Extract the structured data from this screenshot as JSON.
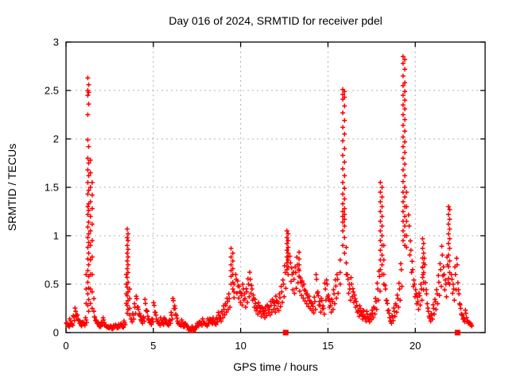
{
  "chart_data": {
    "type": "scatter",
    "title": "Day 016 of 2024, SRMTID for receiver pdel",
    "xlabel": "GPS time / hours",
    "ylabel": "SRMTID / TECUs",
    "xlim": [
      0,
      24
    ],
    "ylim": [
      0,
      3
    ],
    "grid": "dotted gray at every major tick",
    "legend": "none",
    "marker": "plus",
    "marker_color": "#ff0000",
    "axis_color": "#000000",
    "grid_color": "#b0b0b0",
    "x_ticks": [
      {
        "v": 0,
        "label": "0"
      },
      {
        "v": 5,
        "label": "5"
      },
      {
        "v": 10,
        "label": "10"
      },
      {
        "v": 15,
        "label": "15"
      },
      {
        "v": 20,
        "label": "20"
      }
    ],
    "y_ticks": [
      {
        "v": 0,
        "label": "0"
      },
      {
        "v": 0.5,
        "label": "0.5"
      },
      {
        "v": 1,
        "label": "1"
      },
      {
        "v": 1.5,
        "label": "1.5"
      },
      {
        "v": 2,
        "label": "2"
      },
      {
        "v": 2.5,
        "label": "2.5"
      },
      {
        "v": 3,
        "label": "3"
      }
    ],
    "baseline_segments": [
      {
        "x0": 0.05,
        "dx": 0.1,
        "y": [
          0.1,
          0.07,
          0.12,
          0.09,
          0.16,
          0.22,
          0.18,
          0.12,
          0.08,
          0.11,
          0.09,
          0.13
        ]
      },
      {
        "x0": 1.65,
        "dx": 0.1,
        "y": [
          0.16,
          0.12,
          0.09,
          0.07,
          0.1,
          0.13,
          0.08,
          0.06,
          0.05,
          0.07,
          0.04,
          0.06,
          0.08,
          0.05,
          0.07,
          0.09,
          0.06,
          0.1
        ]
      },
      {
        "x0": 3.75,
        "dx": 0.1,
        "y": [
          0.14,
          0.18,
          0.26,
          0.35,
          0.24,
          0.17,
          0.12,
          0.15,
          0.3,
          0.22,
          0.13,
          0.1,
          0.14,
          0.28,
          0.18,
          0.12,
          0.09,
          0.13,
          0.1,
          0.14,
          0.11,
          0.09,
          0.12,
          0.18,
          0.33,
          0.25,
          0.15,
          0.1,
          0.08,
          0.11,
          0.07,
          0.09,
          0.06,
          0.04,
          0.02,
          0.05,
          0.03,
          0.06,
          0.08,
          0.11,
          0.09,
          0.12,
          0.1,
          0.08,
          0.12,
          0.14,
          0.11,
          0.13,
          0.1,
          0.14,
          0.18,
          0.15,
          0.2,
          0.24,
          0.28,
          0.32,
          0.35
        ]
      },
      {
        "x0": 9.75,
        "dx": 0.1,
        "y": [
          0.55,
          0.48,
          0.42,
          0.38,
          0.45,
          0.35,
          0.42,
          0.5,
          0.55,
          0.45,
          0.35,
          0.3,
          0.25,
          0.28,
          0.22,
          0.25,
          0.2,
          0.23,
          0.27,
          0.24,
          0.28,
          0.32,
          0.28,
          0.33,
          0.3,
          0.36,
          0.42,
          0.5,
          0.62
        ]
      },
      {
        "x0": 12.85,
        "dx": 0.1,
        "y": [
          0.72,
          0.6,
          0.55,
          0.62,
          0.7,
          0.58,
          0.52,
          0.48,
          0.44,
          0.4,
          0.36,
          0.33,
          0.3,
          0.27,
          0.32,
          0.55,
          0.38,
          0.28,
          0.33,
          0.25,
          0.45,
          0.5,
          0.35,
          0.28,
          0.32,
          0.4,
          0.48,
          0.55
        ]
      },
      {
        "x0": 16.15,
        "dx": 0.1,
        "y": [
          0.55,
          0.45,
          0.5,
          0.42,
          0.35,
          0.28,
          0.22,
          0.25,
          0.18,
          0.22,
          0.15,
          0.19,
          0.14,
          0.17,
          0.2,
          0.25,
          0.32,
          0.45,
          0.58
        ]
      },
      {
        "x0": 18.3,
        "dx": 0.1,
        "y": [
          0.45,
          0.3,
          0.2,
          0.12,
          0.16,
          0.22,
          0.28,
          0.35,
          0.45,
          0.65
        ]
      },
      {
        "x0": 19.65,
        "dx": 0.1,
        "y": [
          1.1,
          0.85,
          0.65,
          0.5,
          0.4,
          0.32,
          0.38,
          0.45,
          0.6,
          0.7,
          0.4,
          0.22,
          0.15,
          0.18,
          0.25,
          0.32,
          0.4,
          0.52,
          0.65,
          0.8,
          0.6,
          0.5,
          0.7
        ]
      },
      {
        "x0": 22.1,
        "dx": 0.1,
        "y": [
          0.55,
          0.45,
          0.6,
          0.7,
          0.4,
          0.25,
          0.18,
          0.14,
          0.2,
          0.12,
          0.1,
          0.08
        ]
      }
    ],
    "spike_columns": [
      {
        "x": 1.15,
        "y": [
          0.6,
          0.45,
          0.3
        ]
      },
      {
        "x": 1.25,
        "y": [
          2.63,
          2.5,
          2.45,
          2.25,
          1.99,
          1.8,
          1.68,
          1.55,
          1.43,
          1.3,
          1.22,
          1.09,
          0.98,
          0.88,
          0.76,
          0.64,
          0.52,
          0.4,
          0.28
        ]
      },
      {
        "x": 1.3,
        "y": [
          2.56,
          2.48,
          2.36,
          1.92,
          1.75,
          1.62,
          1.47,
          1.33,
          1.26,
          1.14,
          1.02,
          0.93,
          0.82,
          0.7,
          0.58,
          0.46,
          0.34,
          0.22
        ]
      },
      {
        "x": 1.4,
        "y": [
          1.78,
          1.65,
          1.5,
          1.35,
          1.2,
          1.05,
          0.9,
          0.75,
          0.6,
          0.45,
          0.3
        ]
      },
      {
        "x": 1.5,
        "y": [
          1.55,
          1.42,
          1.28,
          1.12,
          0.95,
          0.78,
          0.6,
          0.42,
          0.25
        ]
      },
      {
        "x": 1.6,
        "y": [
          0.35,
          0.22
        ]
      },
      {
        "x": 3.45,
        "y": [
          0.6,
          0.5,
          0.4,
          0.3
        ]
      },
      {
        "x": 3.5,
        "y": [
          1.07,
          0.98,
          0.9,
          0.82,
          0.74,
          0.66,
          0.57,
          0.47,
          0.38,
          0.28,
          0.2
        ]
      },
      {
        "x": 3.55,
        "y": [
          1.02,
          0.95,
          0.86,
          0.78,
          0.7,
          0.62,
          0.52,
          0.42,
          0.33,
          0.24
        ]
      },
      {
        "x": 3.65,
        "y": [
          0.45,
          0.35,
          0.25,
          0.18
        ]
      },
      {
        "x": 9.45,
        "y": [
          0.87,
          0.78,
          0.7,
          0.64,
          0.58,
          0.5
        ]
      },
      {
        "x": 9.55,
        "y": [
          0.82,
          0.74,
          0.66,
          0.6,
          0.52,
          0.45
        ]
      },
      {
        "x": 9.62,
        "y": [
          0.5,
          0.42,
          0.36
        ]
      },
      {
        "x": 12.65,
        "y": [
          1.05,
          0.98,
          0.92,
          0.85,
          0.78,
          0.72,
          0.65
        ]
      },
      {
        "x": 12.72,
        "y": [
          1.02,
          0.95,
          0.88,
          0.82,
          0.75,
          0.68,
          0.6
        ]
      },
      {
        "x": 13.35,
        "y": [
          0.83,
          0.76,
          0.7,
          0.64,
          0.58
        ]
      },
      {
        "x": 15.7,
        "y": [
          0.75,
          0.62,
          0.5
        ]
      },
      {
        "x": 15.85,
        "y": [
          2.51,
          2.46,
          2.41,
          2.27,
          2.12,
          1.98,
          1.83,
          1.69,
          1.55,
          1.43,
          1.33,
          1.25,
          1.2,
          1.14,
          1.05,
          0.9
        ]
      },
      {
        "x": 15.95,
        "y": [
          2.49,
          2.43,
          2.34,
          2.19,
          2.05,
          1.9,
          1.76,
          1.62,
          1.49,
          1.38,
          1.28,
          1.22,
          1.17,
          1.1,
          0.98,
          0.82
        ]
      },
      {
        "x": 16.05,
        "y": [
          0.88,
          0.72,
          0.6
        ]
      },
      {
        "x": 18.0,
        "y": [
          1.55,
          1.45,
          1.35,
          1.25,
          1.15,
          1.05,
          0.95,
          0.85,
          0.75,
          0.65
        ]
      },
      {
        "x": 18.1,
        "y": [
          1.5,
          1.4,
          1.3,
          1.2,
          1.1,
          1.0,
          0.9,
          0.8,
          0.7,
          0.6
        ]
      },
      {
        "x": 18.2,
        "y": [
          0.9,
          0.75,
          0.6,
          0.5
        ]
      },
      {
        "x": 19.3,
        "y": [
          2.85,
          2.78,
          2.65,
          2.55,
          2.45,
          2.35,
          2.25,
          2.14,
          2.02,
          1.92,
          1.8,
          1.68,
          1.56,
          1.45,
          1.35,
          1.25,
          1.15,
          1.05,
          0.95
        ]
      },
      {
        "x": 19.4,
        "y": [
          2.82,
          2.72,
          2.58,
          2.49,
          2.4,
          2.31,
          2.2,
          2.08,
          1.97,
          1.86,
          1.74,
          1.62,
          1.5,
          1.4,
          1.3,
          1.2,
          1.1,
          1.0,
          0.9
        ]
      },
      {
        "x": 19.5,
        "y": [
          1.45,
          1.3,
          1.15,
          1.0,
          0.88
        ]
      },
      {
        "x": 20.42,
        "y": [
          0.97,
          0.87,
          0.77,
          0.67,
          0.57
        ]
      },
      {
        "x": 20.48,
        "y": [
          0.92,
          0.82,
          0.72,
          0.62,
          0.52
        ]
      },
      {
        "x": 21.9,
        "y": [
          1.3,
          1.22,
          1.12,
          1.02,
          0.92,
          0.8,
          0.68,
          0.56
        ]
      },
      {
        "x": 21.97,
        "y": [
          1.27,
          1.17,
          1.07,
          0.97,
          0.87,
          0.74,
          0.62,
          0.5
        ]
      }
    ],
    "square_markers": [
      [
        12.58,
        0
      ],
      [
        22.42,
        0
      ]
    ]
  }
}
